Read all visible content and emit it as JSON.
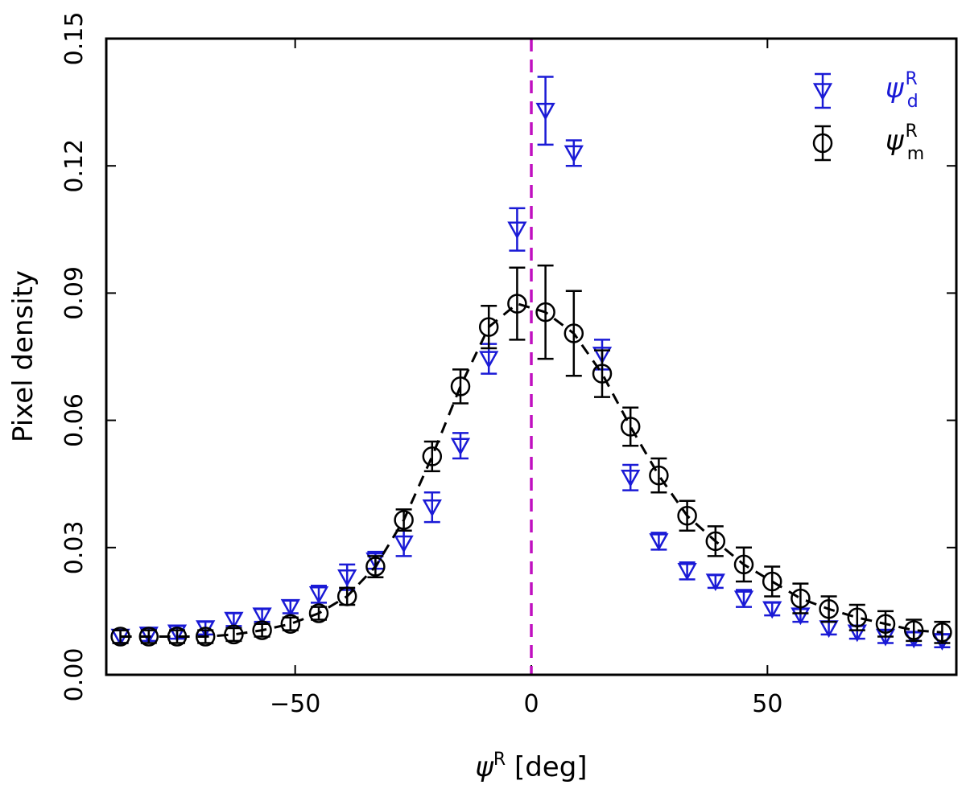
{
  "chart_data": {
    "type": "scatter",
    "title": "",
    "xlabel_symbol": "ψ",
    "xlabel_sup": "R",
    "xlabel_unit": " [deg]",
    "ylabel": "Pixel density",
    "xlim": [
      -90,
      90
    ],
    "ylim": [
      0.0,
      0.15
    ],
    "xticks": [
      -50,
      0,
      50
    ],
    "xtick_labels": [
      "−50",
      "0",
      "50"
    ],
    "yticks": [
      0.0,
      0.03,
      0.06,
      0.09,
      0.12,
      0.15
    ],
    "ytick_labels": [
      "0.00",
      "0.03",
      "0.06",
      "0.09",
      "0.12",
      "0.15"
    ],
    "vline": {
      "x": 0,
      "color": "#c010c0",
      "style": "dashed"
    },
    "legend": {
      "placement": "top-right",
      "entries": [
        {
          "series": "d",
          "symbol": "ψ",
          "sub": "d",
          "sup": "R",
          "color": "#1a1ad6",
          "marker": "triangle-down"
        },
        {
          "series": "m",
          "symbol": "ψ",
          "sub": "m",
          "sup": "R",
          "color": "#000000",
          "marker": "circle"
        }
      ]
    },
    "series": [
      {
        "name": "ψ_d^R",
        "color": "#1a1ad6",
        "marker": "triangle-down",
        "line": "none",
        "x": [
          -87,
          -81,
          -75,
          -69,
          -63,
          -57,
          -51,
          -45,
          -39,
          -33,
          -27,
          -21,
          -15,
          -9,
          -3,
          3,
          9,
          15,
          21,
          27,
          33,
          39,
          45,
          51,
          57,
          63,
          69,
          75,
          81,
          87
        ],
        "y": [
          0.009,
          0.0095,
          0.01,
          0.011,
          0.013,
          0.014,
          0.016,
          0.019,
          0.023,
          0.027,
          0.031,
          0.0395,
          0.054,
          0.0745,
          0.105,
          0.133,
          0.123,
          0.0755,
          0.0465,
          0.0315,
          0.0245,
          0.022,
          0.018,
          0.0155,
          0.014,
          0.011,
          0.01,
          0.009,
          0.0085,
          0.008
        ],
        "err": [
          0.0015,
          0.0015,
          0.0015,
          0.0015,
          0.0015,
          0.0015,
          0.0015,
          0.002,
          0.003,
          0.002,
          0.003,
          0.0035,
          0.003,
          0.0035,
          0.005,
          0.008,
          0.003,
          0.0035,
          0.003,
          0.002,
          0.002,
          0.0015,
          0.002,
          0.0015,
          0.0015,
          0.0015,
          0.0015,
          0.0015,
          0.0015,
          0.0015
        ]
      },
      {
        "name": "ψ_m^R",
        "color": "#000000",
        "marker": "circle",
        "line": "dashed",
        "x": [
          -87,
          -81,
          -75,
          -69,
          -63,
          -57,
          -51,
          -45,
          -39,
          -33,
          -27,
          -21,
          -15,
          -9,
          -3,
          3,
          9,
          15,
          21,
          27,
          33,
          39,
          45,
          51,
          57,
          63,
          69,
          75,
          81,
          87
        ],
        "y": [
          0.009,
          0.009,
          0.009,
          0.009,
          0.0095,
          0.0105,
          0.012,
          0.0145,
          0.0185,
          0.0255,
          0.0365,
          0.0515,
          0.068,
          0.082,
          0.0875,
          0.0855,
          0.0805,
          0.071,
          0.0585,
          0.047,
          0.0375,
          0.0315,
          0.026,
          0.022,
          0.018,
          0.0155,
          0.0135,
          0.012,
          0.0105,
          0.01
        ],
        "err": [
          0.0015,
          0.0015,
          0.0015,
          0.0015,
          0.0015,
          0.0015,
          0.0015,
          0.0015,
          0.002,
          0.0025,
          0.0025,
          0.0035,
          0.004,
          0.005,
          0.0085,
          0.011,
          0.01,
          0.0055,
          0.0045,
          0.004,
          0.0035,
          0.0035,
          0.004,
          0.0035,
          0.0035,
          0.003,
          0.003,
          0.003,
          0.0025,
          0.0025
        ]
      }
    ]
  }
}
